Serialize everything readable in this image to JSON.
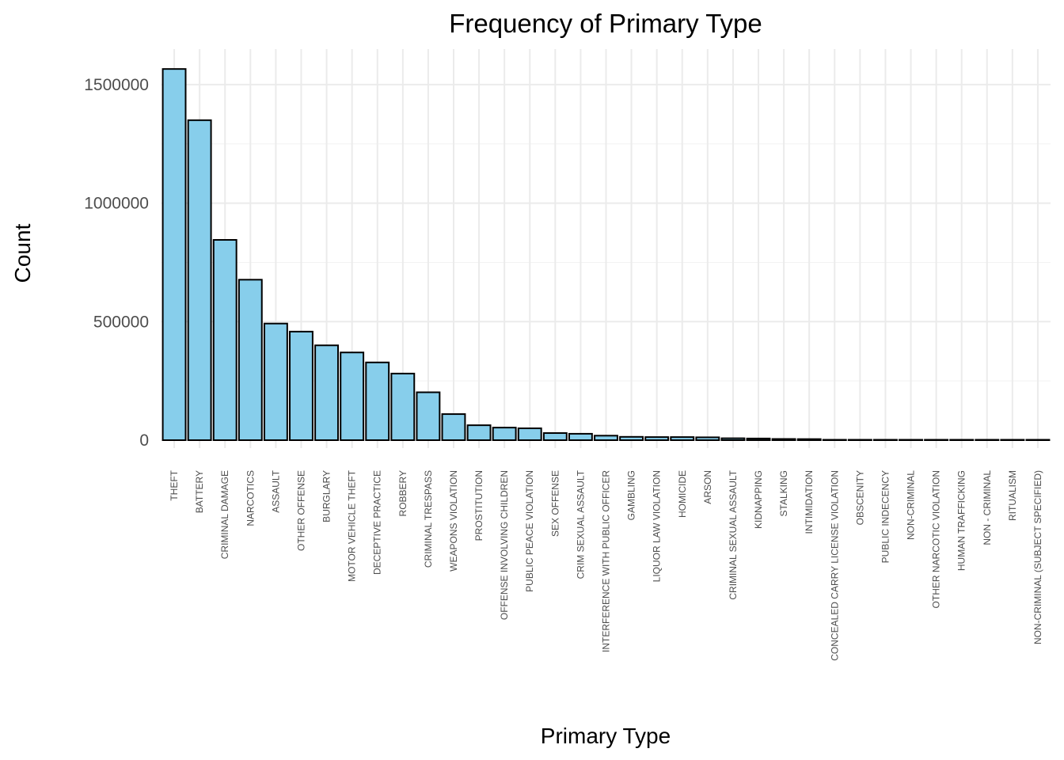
{
  "chart_data": {
    "type": "bar",
    "title": "Frequency of Primary Type",
    "xlabel": "Primary Type",
    "ylabel": "Count",
    "ylim": [
      0,
      1650000
    ],
    "yticks": [
      0,
      500000,
      1000000,
      1500000
    ],
    "ytick_labels": [
      "0",
      "500000",
      "1000000",
      "1500000"
    ],
    "grid": true,
    "fill_color": "#87ceeb",
    "outline_color": "#000000",
    "categories": [
      "THEFT",
      "BATTERY",
      "CRIMINAL DAMAGE",
      "NARCOTICS",
      "ASSAULT",
      "OTHER OFFENSE",
      "BURGLARY",
      "MOTOR VEHICLE THEFT",
      "DECEPTIVE PRACTICE",
      "ROBBERY",
      "CRIMINAL TRESPASS",
      "WEAPONS VIOLATION",
      "PROSTITUTION",
      "OFFENSE INVOLVING CHILDREN",
      "PUBLIC PEACE VIOLATION",
      "SEX OFFENSE",
      "CRIM SEXUAL ASSAULT",
      "INTERFERENCE WITH PUBLIC OFFICER",
      "GAMBLING",
      "LIQUOR LAW VIOLATION",
      "HOMICIDE",
      "ARSON",
      "CRIMINAL SEXUAL ASSAULT",
      "KIDNAPPING",
      "STALKING",
      "INTIMIDATION",
      "CONCEALED CARRY LICENSE VIOLATION",
      "OBSCENITY",
      "PUBLIC INDECENCY",
      "NON-CRIMINAL",
      "OTHER NARCOTIC VIOLATION",
      "HUMAN TRAFFICKING",
      "NON - CRIMINAL",
      "RITUALISM",
      "NON-CRIMINAL (SUBJECT SPECIFIED)"
    ],
    "values": [
      1566000,
      1350000,
      845000,
      677000,
      492000,
      458000,
      400000,
      370000,
      328000,
      281000,
      202000,
      110000,
      63000,
      53000,
      50000,
      30000,
      27000,
      19000,
      14000,
      13000,
      13000,
      12000,
      8000,
      7000,
      5000,
      4500,
      1500,
      1000,
      500,
      200,
      150,
      100,
      40,
      30,
      10
    ]
  }
}
